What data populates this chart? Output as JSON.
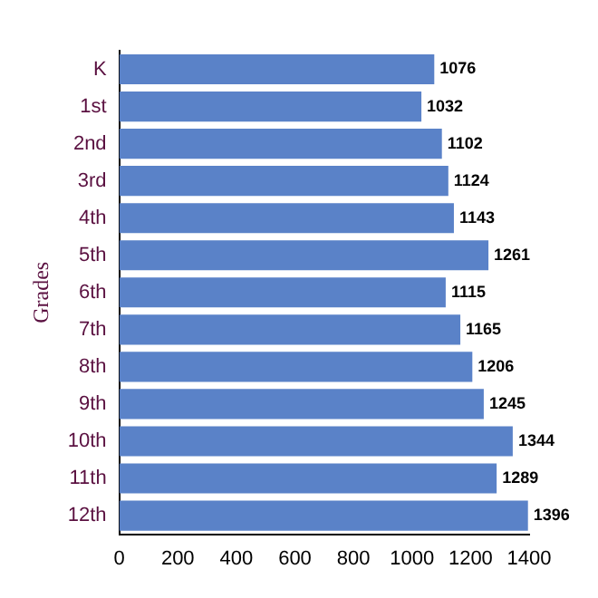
{
  "chart_data": {
    "type": "bar",
    "orientation": "horizontal",
    "ylabel": "Grades",
    "categories": [
      "K",
      "1st",
      "2nd",
      "3rd",
      "4th",
      "5th",
      "6th",
      "7th",
      "8th",
      "9th",
      "10th",
      "11th",
      "12th"
    ],
    "values": [
      1076,
      1032,
      1102,
      1124,
      1143,
      1261,
      1115,
      1165,
      1206,
      1245,
      1344,
      1289,
      1396
    ],
    "color": "#5a82c8",
    "xlim": [
      0,
      1400
    ],
    "xticks": [
      0,
      200,
      400,
      600,
      800,
      1000,
      1200,
      1400
    ],
    "data_labels": true,
    "grid": false,
    "legend": false
  }
}
